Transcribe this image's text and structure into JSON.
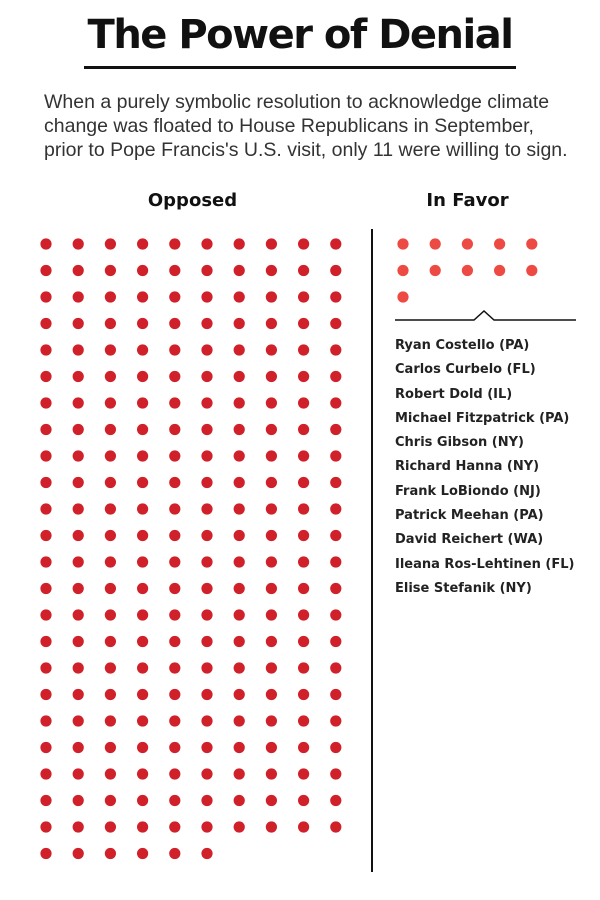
{
  "header": {
    "title": "The Power of Denial",
    "subtitle": "When a purely symbolic resolution to acknowledge climate change was floated to House Republicans in September, prior to Pope Francis's U.S. visit, only 11 were willing to sign."
  },
  "chart_data": {
    "type": "dot-matrix",
    "title": "The Power of Denial",
    "categories": [
      "Opposed",
      "In Favor"
    ],
    "values": [
      236,
      11
    ],
    "colors": {
      "Opposed": "#d0202a",
      "In Favor": "#ee4a44"
    },
    "in_favor_names": [
      "Ryan Costello (PA)",
      "Carlos Curbelo (FL)",
      "Robert Dold (IL)",
      "Michael Fitzpatrick (PA)",
      "Chris Gibson (NY)",
      "Richard Hanna (NY)",
      "Frank LoBiondo (NJ)",
      "Patrick Meehan (PA)",
      "David Reichert (WA)",
      "Ileana Ros-Lehtinen (FL)",
      "Elise Stefanik (NY)"
    ]
  }
}
